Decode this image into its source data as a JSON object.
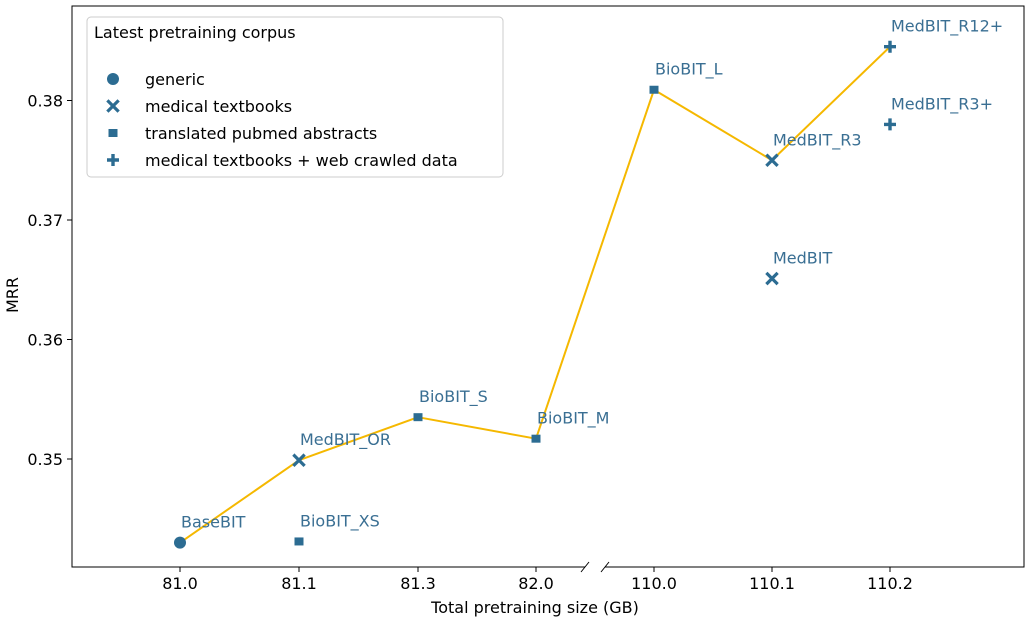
{
  "chart_data": {
    "type": "scatter",
    "xlabel": "Total pretraining size (GB)",
    "ylabel": "MRR",
    "categories": [
      "81.0",
      "81.1",
      "81.3",
      "82.0",
      "110.0",
      "110.1",
      "110.2"
    ],
    "ylim": [
      0.3415,
      0.3879
    ],
    "y_ticks": [
      "0.35",
      "0.36",
      "0.37",
      "0.38"
    ],
    "y_tick_values": [
      0.35,
      0.36,
      0.37,
      0.38
    ],
    "grid": false,
    "axis_break_between": [
      "82.0",
      "110.0"
    ],
    "legend": {
      "title": "Latest pretraining corpus",
      "placement": "top-left",
      "entries": [
        {
          "label": "generic",
          "marker": "circle"
        },
        {
          "label": "medical textbooks",
          "marker": "x"
        },
        {
          "label": "translated pubmed abstracts",
          "marker": "square"
        },
        {
          "label": "medical textbooks + web crawled data",
          "marker": "plus"
        }
      ]
    },
    "points": [
      {
        "name": "BaseBIT",
        "x": "81.0",
        "y": 0.343,
        "marker": "circle"
      },
      {
        "name": "MedBIT_OR",
        "x": "81.1",
        "y": 0.3499,
        "marker": "x"
      },
      {
        "name": "BioBIT_XS",
        "x": "81.1",
        "y": 0.3431,
        "marker": "square"
      },
      {
        "name": "BioBIT_S",
        "x": "81.3",
        "y": 0.3535,
        "marker": "square"
      },
      {
        "name": "BioBIT_M",
        "x": "82.0",
        "y": 0.3517,
        "marker": "square"
      },
      {
        "name": "BioBIT_L",
        "x": "110.0",
        "y": 0.3809,
        "marker": "square"
      },
      {
        "name": "MedBIT_R3",
        "x": "110.1",
        "y": 0.375,
        "marker": "x"
      },
      {
        "name": "MedBIT",
        "x": "110.1",
        "y": 0.3651,
        "marker": "x"
      },
      {
        "name": "MedBIT_R12+",
        "x": "110.2",
        "y": 0.3845,
        "marker": "plus"
      },
      {
        "name": "MedBIT_R3+",
        "x": "110.2",
        "y": 0.378,
        "marker": "plus"
      }
    ],
    "best_line": [
      "BaseBIT",
      "MedBIT_OR",
      "BioBIT_S",
      "BioBIT_M",
      "BioBIT_L",
      "MedBIT_R3",
      "MedBIT_R12+"
    ],
    "colors": {
      "marker": "#2c6c92",
      "line": "#f5b800",
      "label": "#3a6f93"
    }
  }
}
